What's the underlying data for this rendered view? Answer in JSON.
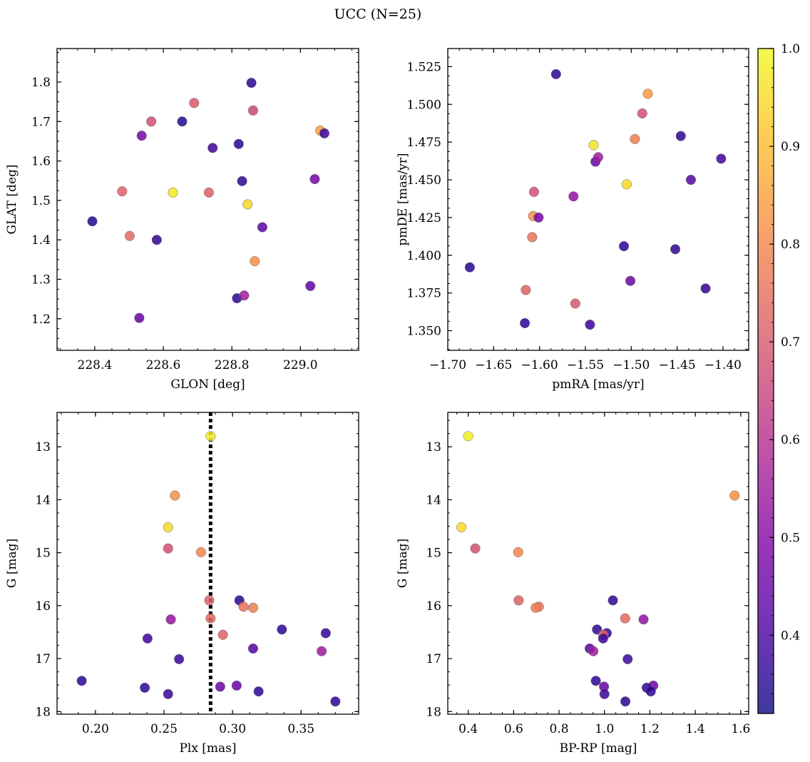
{
  "figure": {
    "title": "UCC (N=25)"
  },
  "colorbar": {
    "colormap": "plasma",
    "vmin": 0.32,
    "vmax": 1.0,
    "ticks": [
      {
        "value": 0.4,
        "label": "0.4"
      },
      {
        "value": 0.5,
        "label": "0.5"
      },
      {
        "value": 0.6,
        "label": "0.6"
      },
      {
        "value": 0.7,
        "label": "0.7"
      },
      {
        "value": 0.8,
        "label": "0.8"
      },
      {
        "value": 0.9,
        "label": "0.9"
      },
      {
        "value": 1.0,
        "label": "1.0"
      }
    ]
  },
  "chart_data": [
    {
      "type": "scatter",
      "xlabel": "GLON [deg]",
      "ylabel": "GLAT [deg]",
      "xlim": [
        228.29,
        229.17
      ],
      "ylim": [
        1.12,
        1.885
      ],
      "y_inverted": false,
      "xticks": [
        {
          "value": 228.4,
          "label": "228.4"
        },
        {
          "value": 228.6,
          "label": "228.6"
        },
        {
          "value": 228.8,
          "label": "228.8"
        },
        {
          "value": 229.0,
          "label": "229.0"
        }
      ],
      "yticks": [
        {
          "value": 1.2,
          "label": "1.2"
        },
        {
          "value": 1.3,
          "label": "1.3"
        },
        {
          "value": 1.4,
          "label": "1.4"
        },
        {
          "value": 1.5,
          "label": "1.5"
        },
        {
          "value": 1.6,
          "label": "1.6"
        },
        {
          "value": 1.7,
          "label": "1.7"
        },
        {
          "value": 1.8,
          "label": "1.8"
        }
      ],
      "points": [
        {
          "x": 228.393,
          "y": 1.447,
          "c": 0.35
        },
        {
          "x": 228.48,
          "y": 1.523,
          "c": 0.72
        },
        {
          "x": 228.502,
          "y": 1.41,
          "c": 0.74
        },
        {
          "x": 228.53,
          "y": 1.202,
          "c": 0.45
        },
        {
          "x": 228.537,
          "y": 1.664,
          "c": 0.48
        },
        {
          "x": 228.565,
          "y": 1.7,
          "c": 0.68
        },
        {
          "x": 228.581,
          "y": 1.4,
          "c": 0.36
        },
        {
          "x": 228.628,
          "y": 1.52,
          "c": 0.97
        },
        {
          "x": 228.655,
          "y": 1.7,
          "c": 0.35
        },
        {
          "x": 228.69,
          "y": 1.747,
          "c": 0.7
        },
        {
          "x": 228.733,
          "y": 1.52,
          "c": 0.72
        },
        {
          "x": 228.744,
          "y": 1.633,
          "c": 0.38
        },
        {
          "x": 228.815,
          "y": 1.252,
          "c": 0.36
        },
        {
          "x": 228.82,
          "y": 1.643,
          "c": 0.36
        },
        {
          "x": 228.83,
          "y": 1.549,
          "c": 0.36
        },
        {
          "x": 228.836,
          "y": 1.259,
          "c": 0.55
        },
        {
          "x": 228.846,
          "y": 1.49,
          "c": 0.94
        },
        {
          "x": 228.857,
          "y": 1.798,
          "c": 0.36
        },
        {
          "x": 228.862,
          "y": 1.728,
          "c": 0.66
        },
        {
          "x": 228.867,
          "y": 1.346,
          "c": 0.82
        },
        {
          "x": 228.889,
          "y": 1.432,
          "c": 0.43
        },
        {
          "x": 229.029,
          "y": 1.283,
          "c": 0.44
        },
        {
          "x": 229.042,
          "y": 1.554,
          "c": 0.47
        },
        {
          "x": 229.058,
          "y": 1.677,
          "c": 0.84
        },
        {
          "x": 229.07,
          "y": 1.67,
          "c": 0.38
        }
      ]
    },
    {
      "type": "scatter",
      "xlabel": "pmRA [mas/yr]",
      "ylabel": "pmDE [mas/yr]",
      "xlim": [
        -1.7,
        -1.372
      ],
      "ylim": [
        1.337,
        1.537
      ],
      "y_inverted": false,
      "xticks": [
        {
          "value": -1.7,
          "label": "−1.70"
        },
        {
          "value": -1.65,
          "label": "−1.65"
        },
        {
          "value": -1.6,
          "label": "−1.60"
        },
        {
          "value": -1.55,
          "label": "−1.55"
        },
        {
          "value": -1.5,
          "label": "−1.50"
        },
        {
          "value": -1.45,
          "label": "−1.45"
        },
        {
          "value": -1.4,
          "label": "−1.40"
        }
      ],
      "yticks": [
        {
          "value": 1.35,
          "label": "1.350"
        },
        {
          "value": 1.375,
          "label": "1.375"
        },
        {
          "value": 1.4,
          "label": "1.400"
        },
        {
          "value": 1.425,
          "label": "1.425"
        },
        {
          "value": 1.45,
          "label": "1.450"
        },
        {
          "value": 1.475,
          "label": "1.475"
        },
        {
          "value": 1.5,
          "label": "1.500"
        },
        {
          "value": 1.525,
          "label": "1.525"
        }
      ],
      "points": [
        {
          "x": -1.676,
          "y": 1.392,
          "c": 0.35
        },
        {
          "x": -1.616,
          "y": 1.355,
          "c": 0.36
        },
        {
          "x": -1.615,
          "y": 1.377,
          "c": 0.72
        },
        {
          "x": -1.608,
          "y": 1.412,
          "c": 0.76
        },
        {
          "x": -1.607,
          "y": 1.426,
          "c": 0.82
        },
        {
          "x": -1.606,
          "y": 1.442,
          "c": 0.68
        },
        {
          "x": -1.601,
          "y": 1.425,
          "c": 0.48
        },
        {
          "x": -1.582,
          "y": 1.52,
          "c": 0.36
        },
        {
          "x": -1.563,
          "y": 1.439,
          "c": 0.53
        },
        {
          "x": -1.561,
          "y": 1.368,
          "c": 0.7
        },
        {
          "x": -1.545,
          "y": 1.354,
          "c": 0.38
        },
        {
          "x": -1.541,
          "y": 1.473,
          "c": 0.96
        },
        {
          "x": -1.539,
          "y": 1.462,
          "c": 0.44
        },
        {
          "x": -1.536,
          "y": 1.465,
          "c": 0.55
        },
        {
          "x": -1.508,
          "y": 1.406,
          "c": 0.36
        },
        {
          "x": -1.505,
          "y": 1.447,
          "c": 0.95
        },
        {
          "x": -1.501,
          "y": 1.383,
          "c": 0.45
        },
        {
          "x": -1.496,
          "y": 1.477,
          "c": 0.78
        },
        {
          "x": -1.488,
          "y": 1.494,
          "c": 0.68
        },
        {
          "x": -1.482,
          "y": 1.507,
          "c": 0.84
        },
        {
          "x": -1.452,
          "y": 1.404,
          "c": 0.36
        },
        {
          "x": -1.446,
          "y": 1.479,
          "c": 0.36
        },
        {
          "x": -1.435,
          "y": 1.45,
          "c": 0.42
        },
        {
          "x": -1.419,
          "y": 1.378,
          "c": 0.37
        },
        {
          "x": -1.402,
          "y": 1.464,
          "c": 0.39
        }
      ]
    },
    {
      "type": "scatter",
      "xlabel": "Plx [mas]",
      "ylabel": "G [mag]",
      "xlim": [
        0.172,
        0.392
      ],
      "ylim": [
        12.35,
        18.05
      ],
      "y_inverted": true,
      "vline": {
        "x": 0.284,
        "style": "dotted"
      },
      "xticks": [
        {
          "value": 0.2,
          "label": "0.20"
        },
        {
          "value": 0.25,
          "label": "0.25"
        },
        {
          "value": 0.3,
          "label": "0.30"
        },
        {
          "value": 0.35,
          "label": "0.35"
        }
      ],
      "yticks": [
        {
          "value": 13,
          "label": "13"
        },
        {
          "value": 14,
          "label": "14"
        },
        {
          "value": 15,
          "label": "15"
        },
        {
          "value": 16,
          "label": "16"
        },
        {
          "value": 17,
          "label": "17"
        },
        {
          "value": 18,
          "label": "18"
        }
      ],
      "points": [
        {
          "x": 0.284,
          "y": 12.8,
          "c": 0.98
        },
        {
          "x": 0.258,
          "y": 13.92,
          "c": 0.82
        },
        {
          "x": 0.253,
          "y": 14.52,
          "c": 0.95
        },
        {
          "x": 0.253,
          "y": 14.92,
          "c": 0.68
        },
        {
          "x": 0.277,
          "y": 14.99,
          "c": 0.8
        },
        {
          "x": 0.283,
          "y": 15.9,
          "c": 0.72
        },
        {
          "x": 0.305,
          "y": 15.9,
          "c": 0.36
        },
        {
          "x": 0.308,
          "y": 16.02,
          "c": 0.76
        },
        {
          "x": 0.315,
          "y": 16.04,
          "c": 0.78
        },
        {
          "x": 0.284,
          "y": 16.24,
          "c": 0.74
        },
        {
          "x": 0.255,
          "y": 16.26,
          "c": 0.53
        },
        {
          "x": 0.336,
          "y": 16.45,
          "c": 0.36
        },
        {
          "x": 0.368,
          "y": 16.52,
          "c": 0.37
        },
        {
          "x": 0.293,
          "y": 16.55,
          "c": 0.72
        },
        {
          "x": 0.238,
          "y": 16.62,
          "c": 0.38
        },
        {
          "x": 0.315,
          "y": 16.81,
          "c": 0.42
        },
        {
          "x": 0.365,
          "y": 16.86,
          "c": 0.55
        },
        {
          "x": 0.261,
          "y": 17.01,
          "c": 0.38
        },
        {
          "x": 0.19,
          "y": 17.42,
          "c": 0.36
        },
        {
          "x": 0.303,
          "y": 17.51,
          "c": 0.46
        },
        {
          "x": 0.291,
          "y": 17.53,
          "c": 0.45
        },
        {
          "x": 0.236,
          "y": 17.55,
          "c": 0.36
        },
        {
          "x": 0.319,
          "y": 17.62,
          "c": 0.36
        },
        {
          "x": 0.253,
          "y": 17.67,
          "c": 0.38
        },
        {
          "x": 0.375,
          "y": 17.81,
          "c": 0.36
        }
      ]
    },
    {
      "type": "scatter",
      "xlabel": "BP-RP [mag]",
      "ylabel": "G [mag]",
      "xlim": [
        0.31,
        1.635
      ],
      "ylim": [
        12.35,
        18.05
      ],
      "y_inverted": true,
      "xticks": [
        {
          "value": 0.4,
          "label": "0.4"
        },
        {
          "value": 0.6,
          "label": "0.6"
        },
        {
          "value": 0.8,
          "label": "0.8"
        },
        {
          "value": 1.0,
          "label": "1.0"
        },
        {
          "value": 1.2,
          "label": "1.2"
        },
        {
          "value": 1.4,
          "label": "1.4"
        },
        {
          "value": 1.6,
          "label": "1.6"
        }
      ],
      "yticks": [
        {
          "value": 13,
          "label": "13"
        },
        {
          "value": 14,
          "label": "14"
        },
        {
          "value": 15,
          "label": "15"
        },
        {
          "value": 16,
          "label": "16"
        },
        {
          "value": 17,
          "label": "17"
        },
        {
          "value": 18,
          "label": "18"
        }
      ],
      "points": [
        {
          "x": 0.4,
          "y": 12.8,
          "c": 0.98
        },
        {
          "x": 1.573,
          "y": 13.92,
          "c": 0.82
        },
        {
          "x": 0.37,
          "y": 14.52,
          "c": 0.95
        },
        {
          "x": 0.431,
          "y": 14.92,
          "c": 0.68
        },
        {
          "x": 0.62,
          "y": 14.99,
          "c": 0.8
        },
        {
          "x": 0.622,
          "y": 15.9,
          "c": 0.72
        },
        {
          "x": 1.037,
          "y": 15.9,
          "c": 0.36
        },
        {
          "x": 0.711,
          "y": 16.02,
          "c": 0.76
        },
        {
          "x": 0.697,
          "y": 16.04,
          "c": 0.78
        },
        {
          "x": 1.091,
          "y": 16.24,
          "c": 0.74
        },
        {
          "x": 1.172,
          "y": 16.26,
          "c": 0.53
        },
        {
          "x": 0.967,
          "y": 16.45,
          "c": 0.36
        },
        {
          "x": 1.01,
          "y": 16.52,
          "c": 0.37
        },
        {
          "x": 0.995,
          "y": 16.55,
          "c": 0.72
        },
        {
          "x": 0.994,
          "y": 16.62,
          "c": 0.38
        },
        {
          "x": 0.935,
          "y": 16.81,
          "c": 0.42
        },
        {
          "x": 0.951,
          "y": 16.86,
          "c": 0.55
        },
        {
          "x": 1.102,
          "y": 17.01,
          "c": 0.38
        },
        {
          "x": 0.962,
          "y": 17.42,
          "c": 0.36
        },
        {
          "x": 1.215,
          "y": 17.51,
          "c": 0.46
        },
        {
          "x": 0.998,
          "y": 17.53,
          "c": 0.45
        },
        {
          "x": 1.186,
          "y": 17.55,
          "c": 0.36
        },
        {
          "x": 1.204,
          "y": 17.62,
          "c": 0.36
        },
        {
          "x": 1.0,
          "y": 17.67,
          "c": 0.38
        },
        {
          "x": 1.092,
          "y": 17.81,
          "c": 0.36
        }
      ]
    }
  ]
}
